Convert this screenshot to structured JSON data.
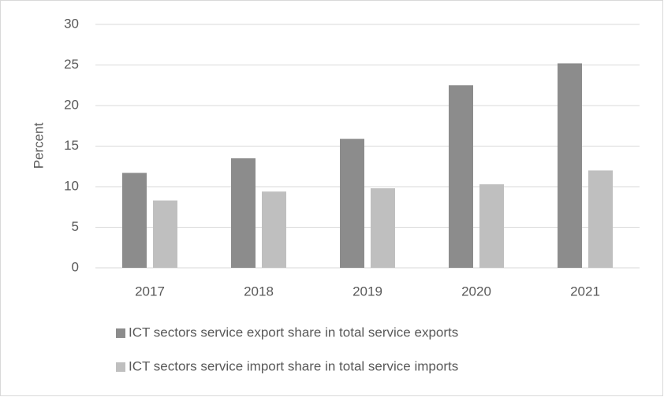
{
  "chart_data": {
    "type": "bar",
    "y_label": "Percent",
    "categories": [
      "2017",
      "2018",
      "2019",
      "2020",
      "2021"
    ],
    "series": [
      {
        "name": "ICT sectors service export share in total service exports",
        "color": "#8c8c8c",
        "values": [
          11.7,
          13.5,
          15.9,
          22.5,
          25.2
        ]
      },
      {
        "name": "ICT sectors service import share in total service imports",
        "color": "#bfbfbf",
        "values": [
          8.3,
          9.4,
          9.8,
          10.3,
          12.0
        ]
      }
    ],
    "ylim": [
      0,
      30
    ],
    "yticks": [
      0,
      5,
      10,
      15,
      20,
      25,
      30
    ],
    "grid": true,
    "legend": "bottom"
  }
}
